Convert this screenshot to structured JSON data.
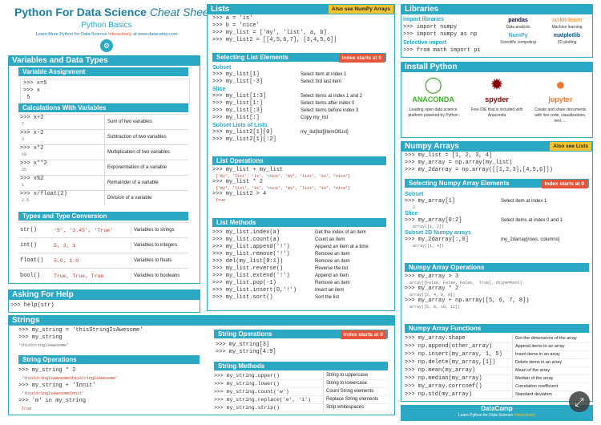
{
  "header": {
    "title": "Python For Data Science",
    "title_italic": "Cheat Sheet",
    "subtitle": "Python Basics",
    "tagline_prefix": "Learn More Python for Data Science",
    "tagline_highlight": "Interactively",
    "tagline_suffix": "at  www.datacamp.com"
  },
  "variables": {
    "title": "Variables and Data Types",
    "assignment_title": "Variable Assignment",
    "assignment_code": ">>> x=5\n>>> x\n 5",
    "calc_title": "Calculations With Variables",
    "calc_rows": [
      {
        "code": ">>> x+2",
        "out": "7",
        "desc": "Sum of two variables"
      },
      {
        "code": ">>> x-2",
        "out": "3",
        "desc": "Subtraction of two variables"
      },
      {
        "code": ">>> x*2",
        "out": "10",
        "desc": "Multiplication of two variables"
      },
      {
        "code": ">>> x**2",
        "out": "25",
        "desc": "Exponentiation of a variable"
      },
      {
        "code": ">>> x%2",
        "out": "1",
        "desc": "Remainder of a variable"
      },
      {
        "code": ">>> x/float(2)",
        "out": "2.5",
        "desc": "Division of a variable"
      }
    ],
    "types_title": "Types and Type Conversion",
    "types_rows": [
      {
        "fn": "str()",
        "ex": "'5', '3.45', 'True'",
        "desc": "Variables to strings"
      },
      {
        "fn": "int()",
        "ex": "5, 3, 1",
        "desc": "Variables to integers"
      },
      {
        "fn": "float()",
        "ex": "5.0, 1.0",
        "desc": "Variables to floats"
      },
      {
        "fn": "bool()",
        "ex": "True, True, True",
        "desc": "Variables to booleans"
      }
    ]
  },
  "help": {
    "title": "Asking For Help",
    "code": ">>> help(str)"
  },
  "strings": {
    "title": "Strings",
    "code1": ">>> my_string = 'thisStringIsAwesome'\n>>> my_string",
    "out1": "'thisStringIsAwesome'",
    "ops_title": "String Operations",
    "ops_code1": ">>> my_string * 2",
    "ops_out1": "'thisStringIsAwesomethisStringIsAwesome'",
    "ops_code2": ">>> my_string + 'Innit'",
    "ops_out2": "'thisStringIsAwesomeInnit'",
    "ops_code3": ">>> 'm' in my_string",
    "ops_out3": "True"
  },
  "lists": {
    "title": "Lists",
    "badge": "Also see NumPy Arrays",
    "code": ">>> a = 'is'\n>>> b = 'nice'\n>>> my_list = ['my', 'list', a, b]\n>>> my_list2 = [[4,5,6,7], [3,4,5,6]]",
    "select_title": "Selecting List Elements",
    "select_badge": "Index starts at 0",
    "subset_label": "Subset",
    "subset_rows": [
      {
        "code": ">>> my_list[1]",
        "desc": "Select item at index 1"
      },
      {
        "code": ">>> my_list[-3]",
        "desc": "Select 3rd last item"
      }
    ],
    "slice_label": "Slice",
    "slice_rows": [
      {
        "code": ">>> my_list[1:3]",
        "desc": "Select items at index 1 and 2"
      },
      {
        "code": ">>> my_list[1:]",
        "desc": "Select items after index 0"
      },
      {
        "code": ">>> my_list[:3]",
        "desc": "Select items before index 3"
      },
      {
        "code": ">>> my_list[:]",
        "desc": "Copy my_list"
      }
    ],
    "sublist_label": "Subset Lists of Lists",
    "sublist_rows": [
      {
        "code": ">>> my_list2[1][0]",
        "desc": "my_list[list][itemOfList]"
      },
      {
        "code": ">>> my_list2[1][:2]",
        "desc": ""
      }
    ],
    "ops_title": "List Operations",
    "ops_code1": ">>> my_list + my_list",
    "ops_out1": "['my', 'list', 'is', 'nice', 'my', 'list', 'is', 'nice']",
    "ops_code2": ">>> my_list * 2",
    "ops_out2": "['my', 'list', 'is', 'nice', 'my', 'list', 'is', 'nice']",
    "ops_code3": ">>> my_list2 > 4",
    "ops_out3": "True",
    "methods_title": "List Methods",
    "methods": [
      {
        "code": ">>> my_list.index(a)",
        "desc": "Get the index of an item"
      },
      {
        "code": ">>> my_list.count(a)",
        "desc": "Count an item"
      },
      {
        "code": ">>> my_list.append('!')",
        "desc": "Append an item at a time"
      },
      {
        "code": ">>> my_list.remove('!')",
        "desc": "Remove an item"
      },
      {
        "code": ">>> del(my_list[0:1])",
        "desc": "Remove an item"
      },
      {
        "code": ">>> my_list.reverse()",
        "desc": "Reverse the list"
      },
      {
        "code": ">>> my_list.extend('!')",
        "desc": "Append an item"
      },
      {
        "code": ">>> my_list.pop(-1)",
        "desc": "Remove an item"
      },
      {
        "code": ">>> my_list.insert(0,'!')",
        "desc": "Insert an item"
      },
      {
        "code": ">>> my_list.sort()",
        "desc": "Sort the list"
      }
    ]
  },
  "string_ops2": {
    "title": "String Operations",
    "badge": "Index starts at 0",
    "code": ">>> my_string[3]\n>>> my_string[4:9]"
  },
  "string_methods": {
    "title": "String Methods",
    "rows": [
      {
        "code": ">>> my_string.upper()",
        "desc": "String to uppercase"
      },
      {
        "code": ">>> my_string.lower()",
        "desc": "String to lowercase"
      },
      {
        "code": ">>> my_string.count('w')",
        "desc": "Count String elements"
      },
      {
        "code": ">>> my_string.replace('e', 'i')",
        "desc": "Replace String elements"
      },
      {
        "code": ">>> my_string.strip()",
        "desc": "Strip whitespaces"
      }
    ]
  },
  "libraries": {
    "title": "Libraries",
    "import_label": "Import libraries",
    "import_code": ">>> import numpy\n>>> import numpy as np",
    "selective_label": "Selective import",
    "selective_code": ">>> from math import pi",
    "items": [
      {
        "name": "pandas",
        "caption": "Data analysis",
        "color": "#150458"
      },
      {
        "name": "scikit-learn",
        "caption": "Machine learning",
        "color": "#f89939"
      },
      {
        "name": "NumPy",
        "caption": "Scientific computing",
        "color": "#4dabcf"
      },
      {
        "name": "matplotlib",
        "caption": "2D plotting",
        "color": "#11557c"
      }
    ]
  },
  "install": {
    "title": "Install Python",
    "items": [
      {
        "name": "ANACONDA",
        "caption": "Leading open data science platform powered by Python"
      },
      {
        "name": "spyder",
        "caption": "Free IDE that is included with Anaconda"
      },
      {
        "name": "jupyter",
        "caption": "Create and share documents with live code, visualizations, text, ..."
      }
    ]
  },
  "numpy": {
    "title": "Numpy Arrays",
    "badge": "Also see Lists",
    "code": ">>> my_list = [1, 2, 3, 4]\n>>> my_array = np.array(my_list)\n>>> my_2darray = np.array([[1,2,3],[4,5,6]])",
    "select_title": "Selecting Numpy Array Elements",
    "select_badge": "Index starts at 0",
    "subset_label": "Subset",
    "subset_code": ">>> my_array[1]",
    "subset_out": "2",
    "subset_desc": "Select item at index 1",
    "slice_label": "Slice",
    "slice_code": ">>> my_array[0:2]",
    "slice_out": "array([1, 2])",
    "slice_desc": "Select items at index 0 and 1",
    "sub2d_label": "Subset 2D Numpy arrays",
    "sub2d_code": ">>> my_2darray[:,0]",
    "sub2d_out": "array([1, 4])",
    "sub2d_desc": "my_2darray[rows, columns]",
    "ops_title": "Numpy Array Operations",
    "ops_code1": ">>> my_array > 3",
    "ops_out1": "array([False, False, False,  True], dtype=bool)",
    "ops_code2": ">>> my_array * 2",
    "ops_out2": "array([2, 4, 6, 8])",
    "ops_code3": ">>> my_array + np.array([5, 6, 7, 8])",
    "ops_out3": "array([6, 8, 10, 12])",
    "fn_title": "Numpy Array Functions",
    "functions": [
      {
        "code": ">>> my_array.shape",
        "desc": "Get the dimensions of the array"
      },
      {
        "code": ">>> np.append(other_array)",
        "desc": "Append items to an array"
      },
      {
        "code": ">>> np.insert(my_array, 1, 5)",
        "desc": "Insert items in an array"
      },
      {
        "code": ">>> np.delete(my_array,[1])",
        "desc": "Delete items in an array"
      },
      {
        "code": ">>> np.mean(my_array)",
        "desc": "Mean of the array"
      },
      {
        "code": ">>> np.median(my_array)",
        "desc": "Median of the array"
      },
      {
        "code": ">>> my_array.corrcoef()",
        "desc": "Correlation coefficient"
      },
      {
        "code": ">>> np.std(my_array)",
        "desc": "Standard deviation"
      }
    ]
  },
  "footer": {
    "brand": "DataCamp",
    "tagline_prefix": "Learn Python for Data Science",
    "tagline_highlight": "Interactively"
  },
  "colors": {
    "accent": "#2aa8c4",
    "badge_yellow": "#f4c430",
    "badge_red": "#e6553a",
    "dark_blue": "#1b7fa3"
  }
}
